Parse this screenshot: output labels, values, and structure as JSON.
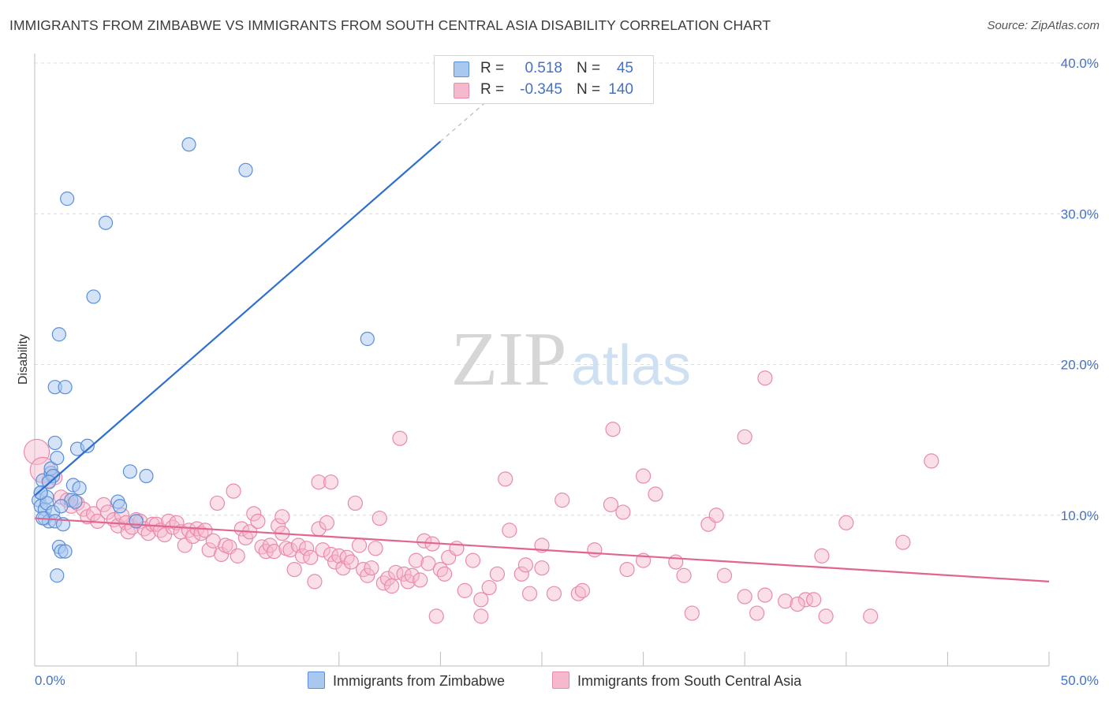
{
  "header": {
    "title": "IMMIGRANTS FROM ZIMBABWE VS IMMIGRANTS FROM SOUTH CENTRAL ASIA DISABILITY CORRELATION CHART",
    "source": "Source: ZipAtlas.com"
  },
  "watermark": {
    "zip": "ZIP",
    "atlas": "atlas"
  },
  "colors": {
    "series1_fill": "#a9c8f0",
    "series1_stroke": "#5a8fd8",
    "series1_line": "#2f6fd0",
    "series2_fill": "#f6b8cc",
    "series2_stroke": "#e98aaa",
    "series2_line": "#e0668e",
    "label_blue": "#4472c4",
    "grid": "#dcdcdc"
  },
  "legend": {
    "rows": [
      {
        "r_label": "R =",
        "r_value": "0.518",
        "n_label": "N =",
        "n_value": "45"
      },
      {
        "r_label": "R =",
        "r_value": "-0.345",
        "n_label": "N =",
        "n_value": "140"
      }
    ]
  },
  "chart_data": {
    "type": "scatter",
    "title": "IMMIGRANTS FROM ZIMBABWE VS IMMIGRANTS FROM SOUTH CENTRAL ASIA DISABILITY CORRELATION CHART",
    "xlabel": "",
    "ylabel": "Disability",
    "xlim": [
      0,
      50
    ],
    "ylim": [
      0,
      40
    ],
    "x_tick_labels": [
      "0.0%",
      "50.0%"
    ],
    "y_ticks": [
      10,
      20,
      30,
      40
    ],
    "y_tick_labels": [
      "10.0%",
      "20.0%",
      "30.0%",
      "40.0%"
    ],
    "grid": true,
    "legend_position": "top-center",
    "series": [
      {
        "name": "Immigrants from Zimbabwe",
        "r": 0.518,
        "n": 45,
        "trend": {
          "x": [
            0.0,
            20.0
          ],
          "y": [
            11.3,
            34.8
          ],
          "dashed_to": [
            23.0,
            38.3
          ]
        },
        "points": [
          [
            0.2,
            11.0
          ],
          [
            0.3,
            10.6
          ],
          [
            0.3,
            11.5
          ],
          [
            0.4,
            12.3
          ],
          [
            0.5,
            10.4
          ],
          [
            0.5,
            9.8
          ],
          [
            0.6,
            11.2
          ],
          [
            0.6,
            10.8
          ],
          [
            0.7,
            9.6
          ],
          [
            0.8,
            12.8
          ],
          [
            0.8,
            13.1
          ],
          [
            0.9,
            12.6
          ],
          [
            0.9,
            10.2
          ],
          [
            1.0,
            9.6
          ],
          [
            1.0,
            14.8
          ],
          [
            1.0,
            18.5
          ],
          [
            1.1,
            13.8
          ],
          [
            1.2,
            7.9
          ],
          [
            1.1,
            6.0
          ],
          [
            1.2,
            22.0
          ],
          [
            1.3,
            7.6
          ],
          [
            1.4,
            9.4
          ],
          [
            1.5,
            7.6
          ],
          [
            1.5,
            18.5
          ],
          [
            1.6,
            31.0
          ],
          [
            1.8,
            11.0
          ],
          [
            1.9,
            12.0
          ],
          [
            2.0,
            10.9
          ],
          [
            2.1,
            14.4
          ],
          [
            2.2,
            11.8
          ],
          [
            2.6,
            14.6
          ],
          [
            2.9,
            24.5
          ],
          [
            3.5,
            29.4
          ],
          [
            4.1,
            10.9
          ],
          [
            4.2,
            10.6
          ],
          [
            4.7,
            12.9
          ],
          [
            5.0,
            9.6
          ],
          [
            5.5,
            12.6
          ],
          [
            7.6,
            34.6
          ],
          [
            10.4,
            32.9
          ],
          [
            16.4,
            21.7
          ],
          [
            0.3,
            11.5
          ],
          [
            0.7,
            12.2
          ],
          [
            0.4,
            9.8
          ],
          [
            1.3,
            10.6
          ]
        ]
      },
      {
        "name": "Immigrants from South Central Asia",
        "r": -0.345,
        "n": 140,
        "trend": {
          "x": [
            0.0,
            50.0
          ],
          "y": [
            9.8,
            5.6
          ]
        },
        "points": [
          [
            0.1,
            14.2
          ],
          [
            0.4,
            13.0
          ],
          [
            0.7,
            12.3
          ],
          [
            1.0,
            12.5
          ],
          [
            1.3,
            11.2
          ],
          [
            1.6,
            11.0
          ],
          [
            1.8,
            10.6
          ],
          [
            2.1,
            10.8
          ],
          [
            2.4,
            10.4
          ],
          [
            2.6,
            9.9
          ],
          [
            2.9,
            10.1
          ],
          [
            3.1,
            9.6
          ],
          [
            3.4,
            10.7
          ],
          [
            3.6,
            10.2
          ],
          [
            3.9,
            9.7
          ],
          [
            4.1,
            9.3
          ],
          [
            4.3,
            10.0
          ],
          [
            4.5,
            9.5
          ],
          [
            4.6,
            8.9
          ],
          [
            4.8,
            9.2
          ],
          [
            5.0,
            9.7
          ],
          [
            5.2,
            9.6
          ],
          [
            5.4,
            9.1
          ],
          [
            5.6,
            8.8
          ],
          [
            5.8,
            9.4
          ],
          [
            6.0,
            9.4
          ],
          [
            6.2,
            9.0
          ],
          [
            6.4,
            8.7
          ],
          [
            6.6,
            9.6
          ],
          [
            6.8,
            9.2
          ],
          [
            7.0,
            9.5
          ],
          [
            7.2,
            8.9
          ],
          [
            7.4,
            8.0
          ],
          [
            7.6,
            9.0
          ],
          [
            7.8,
            8.6
          ],
          [
            8.0,
            9.1
          ],
          [
            8.2,
            8.8
          ],
          [
            8.4,
            9.0
          ],
          [
            8.6,
            7.7
          ],
          [
            8.8,
            8.3
          ],
          [
            9.0,
            10.8
          ],
          [
            9.2,
            7.4
          ],
          [
            9.4,
            8.0
          ],
          [
            9.6,
            7.9
          ],
          [
            9.8,
            11.6
          ],
          [
            10.0,
            7.3
          ],
          [
            10.2,
            9.1
          ],
          [
            10.4,
            8.5
          ],
          [
            10.6,
            8.9
          ],
          [
            10.8,
            10.1
          ],
          [
            11.0,
            9.6
          ],
          [
            11.2,
            7.9
          ],
          [
            11.4,
            7.6
          ],
          [
            11.6,
            8.0
          ],
          [
            11.8,
            7.6
          ],
          [
            12.0,
            9.3
          ],
          [
            12.2,
            8.8
          ],
          [
            12.4,
            7.8
          ],
          [
            12.6,
            7.7
          ],
          [
            12.8,
            6.4
          ],
          [
            13.0,
            8.0
          ],
          [
            13.2,
            7.3
          ],
          [
            13.4,
            7.8
          ],
          [
            13.6,
            7.2
          ],
          [
            13.8,
            5.6
          ],
          [
            14.0,
            9.1
          ],
          [
            14.2,
            7.7
          ],
          [
            14.4,
            9.5
          ],
          [
            14.6,
            7.4
          ],
          [
            14.8,
            6.9
          ],
          [
            15.0,
            7.3
          ],
          [
            15.2,
            6.5
          ],
          [
            15.4,
            7.2
          ],
          [
            15.6,
            6.9
          ],
          [
            15.8,
            10.8
          ],
          [
            16.0,
            8.0
          ],
          [
            16.2,
            6.4
          ],
          [
            16.4,
            6.0
          ],
          [
            16.6,
            6.5
          ],
          [
            16.8,
            7.8
          ],
          [
            17.0,
            9.8
          ],
          [
            17.2,
            5.5
          ],
          [
            17.4,
            5.8
          ],
          [
            17.6,
            5.3
          ],
          [
            17.8,
            6.2
          ],
          [
            18.0,
            15.1
          ],
          [
            18.2,
            6.1
          ],
          [
            18.4,
            5.6
          ],
          [
            18.6,
            6.0
          ],
          [
            18.8,
            7.0
          ],
          [
            19.0,
            5.7
          ],
          [
            19.2,
            8.3
          ],
          [
            19.4,
            6.8
          ],
          [
            19.6,
            8.1
          ],
          [
            20.0,
            6.4
          ],
          [
            20.4,
            7.2
          ],
          [
            20.8,
            7.8
          ],
          [
            21.2,
            5.0
          ],
          [
            21.6,
            7.0
          ],
          [
            22.0,
            3.3
          ],
          [
            22.4,
            5.2
          ],
          [
            22.8,
            6.1
          ],
          [
            23.4,
            9.0
          ],
          [
            24.0,
            6.1
          ],
          [
            24.4,
            4.8
          ],
          [
            25.0,
            8.0
          ],
          [
            25.6,
            4.8
          ],
          [
            26.8,
            4.8
          ],
          [
            27.6,
            7.7
          ],
          [
            28.4,
            10.7
          ],
          [
            29.2,
            6.4
          ],
          [
            30.0,
            7.0
          ],
          [
            30.6,
            11.4
          ],
          [
            31.6,
            6.9
          ],
          [
            32.4,
            3.5
          ],
          [
            33.2,
            9.4
          ],
          [
            34.0,
            6.0
          ],
          [
            35.0,
            4.6
          ],
          [
            35.6,
            3.5
          ],
          [
            36.0,
            4.7
          ],
          [
            37.0,
            4.3
          ],
          [
            38.0,
            4.4
          ],
          [
            38.4,
            4.4
          ],
          [
            38.8,
            7.3
          ],
          [
            39.0,
            3.3
          ],
          [
            40.0,
            9.5
          ],
          [
            41.2,
            3.3
          ],
          [
            42.8,
            8.2
          ],
          [
            44.2,
            13.6
          ],
          [
            36.0,
            19.1
          ],
          [
            35.0,
            15.2
          ],
          [
            28.5,
            15.7
          ],
          [
            30.0,
            12.6
          ],
          [
            29.0,
            10.2
          ],
          [
            14.0,
            12.2
          ],
          [
            20.2,
            6.1
          ],
          [
            14.6,
            12.2
          ],
          [
            19.8,
            3.3
          ],
          [
            24.2,
            6.7
          ],
          [
            37.6,
            4.1
          ],
          [
            22.0,
            4.4
          ],
          [
            25.0,
            6.5
          ],
          [
            27.0,
            5.0
          ],
          [
            32.0,
            6.0
          ],
          [
            33.6,
            10.0
          ],
          [
            26.0,
            11.0
          ],
          [
            23.2,
            12.4
          ],
          [
            12.2,
            9.9
          ]
        ]
      }
    ]
  },
  "bottom_legend": {
    "items": [
      {
        "label": "Immigrants from Zimbabwe"
      },
      {
        "label": "Immigrants from South Central Asia"
      }
    ]
  }
}
